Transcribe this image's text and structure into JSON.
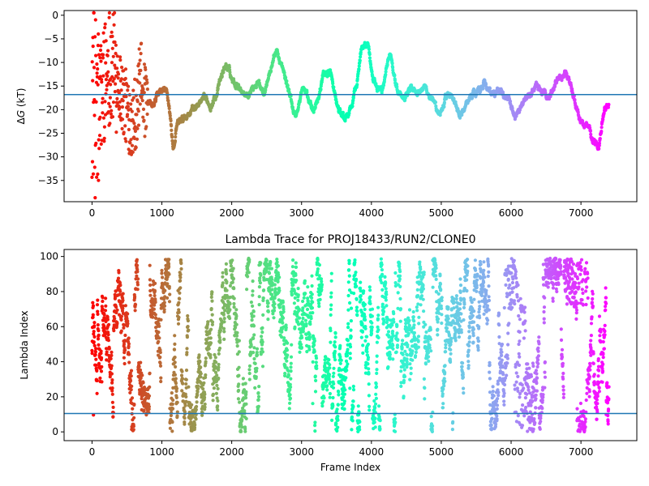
{
  "chart_data": [
    {
      "type": "scatter",
      "title": "",
      "xlabel": "",
      "ylabel": "ΔG (kT)",
      "ylabel_parts": [
        "Δ",
        "G",
        " (kT)"
      ],
      "xlim": [
        -400,
        7800
      ],
      "ylim": [
        -39.5,
        1
      ],
      "xticks": [
        0,
        1000,
        2000,
        3000,
        4000,
        5000,
        6000,
        7000
      ],
      "xtick_labels": [
        "0",
        "1000",
        "2000",
        "3000",
        "4000",
        "5000",
        "6000",
        "7000"
      ],
      "yticks": [
        -35,
        -30,
        -25,
        -20,
        -15,
        -10,
        -5,
        0
      ],
      "ytick_labels": [
        "−35",
        "−30",
        "−25",
        "−20",
        "−15",
        "−10",
        "−5",
        "0"
      ],
      "hline": -16.8,
      "hline_color": "#1f77b4",
      "colormap": "rainbow (red at frame 0 → violet at last frame)",
      "grid": false,
      "legend": "none",
      "x_range": [
        0,
        7400
      ],
      "control_points": [
        [
          0,
          -15
        ],
        [
          80,
          -22
        ],
        [
          150,
          -15
        ],
        [
          250,
          -10
        ],
        [
          350,
          -12
        ],
        [
          450,
          -18
        ],
        [
          550,
          -22
        ],
        [
          650,
          -20
        ],
        [
          700,
          -10
        ],
        [
          750,
          -18
        ],
        [
          850,
          -20
        ],
        [
          950,
          -16
        ],
        [
          1050,
          -16
        ],
        [
          1100,
          -20
        ],
        [
          1150,
          -30
        ],
        [
          1200,
          -23
        ],
        [
          1300,
          -22
        ],
        [
          1400,
          -20
        ],
        [
          1500,
          -19
        ],
        [
          1600,
          -18
        ],
        [
          1700,
          -19
        ],
        [
          1800,
          -15
        ],
        [
          1900,
          -10
        ],
        [
          2000,
          -14
        ],
        [
          2100,
          -15
        ],
        [
          2200,
          -17
        ],
        [
          2350,
          -14
        ],
        [
          2450,
          -16
        ],
        [
          2550,
          -11
        ],
        [
          2620,
          -7
        ],
        [
          2700,
          -11
        ],
        [
          2800,
          -16
        ],
        [
          2900,
          -22
        ],
        [
          3000,
          -15
        ],
        [
          3150,
          -20
        ],
        [
          3250,
          -16
        ],
        [
          3300,
          -12
        ],
        [
          3400,
          -12
        ],
        [
          3500,
          -20
        ],
        [
          3600,
          -22
        ],
        [
          3700,
          -20
        ],
        [
          3800,
          -12
        ],
        [
          3850,
          -6
        ],
        [
          3950,
          -6
        ],
        [
          4000,
          -15
        ],
        [
          4150,
          -16
        ],
        [
          4250,
          -7
        ],
        [
          4350,
          -16
        ],
        [
          4450,
          -17
        ],
        [
          4550,
          -15
        ],
        [
          4650,
          -16
        ],
        [
          4750,
          -15
        ],
        [
          4850,
          -18
        ],
        [
          4950,
          -22
        ],
        [
          5050,
          -17
        ],
        [
          5150,
          -17
        ],
        [
          5250,
          -22
        ],
        [
          5400,
          -17
        ],
        [
          5500,
          -16
        ],
        [
          5600,
          -14
        ],
        [
          5700,
          -17
        ],
        [
          5850,
          -16
        ],
        [
          5950,
          -18
        ],
        [
          6050,
          -22
        ],
        [
          6150,
          -18
        ],
        [
          6250,
          -17
        ],
        [
          6350,
          -15
        ],
        [
          6450,
          -17
        ],
        [
          6550,
          -17
        ],
        [
          6650,
          -13
        ],
        [
          6800,
          -12
        ],
        [
          6900,
          -19
        ],
        [
          7000,
          -23
        ],
        [
          7100,
          -23
        ],
        [
          7150,
          -27
        ],
        [
          7250,
          -27
        ],
        [
          7300,
          -20
        ],
        [
          7400,
          -19
        ]
      ],
      "scatter_band_end_frame": 800
    },
    {
      "type": "scatter",
      "title": "Lambda Trace for PROJ18433/RUN2/CLONE0",
      "xlabel": "Frame Index",
      "ylabel": "Lambda Index",
      "xlim": [
        -400,
        7800
      ],
      "ylim": [
        -5,
        104
      ],
      "xticks": [
        0,
        1000,
        2000,
        3000,
        4000,
        5000,
        6000,
        7000
      ],
      "xtick_labels": [
        "0",
        "1000",
        "2000",
        "3000",
        "4000",
        "5000",
        "6000",
        "7000"
      ],
      "yticks": [
        0,
        20,
        40,
        60,
        80,
        100
      ],
      "ytick_labels": [
        "0",
        "20",
        "40",
        "60",
        "80",
        "100"
      ],
      "hline": 10.5,
      "hline_color": "#1f77b4",
      "colormap": "rainbow (red at frame 0 → violet at last frame)",
      "grid": false,
      "legend": "none",
      "x_range": [
        0,
        7400
      ],
      "y_range": [
        0,
        99
      ],
      "dense_regions": [
        {
          "x": [
            6800,
            7100
          ],
          "y": [
            72,
            99
          ],
          "label": ""
        },
        {
          "x": [
            6050,
            6350
          ],
          "y": [
            0,
            40
          ],
          "label": ""
        },
        {
          "x": [
            5900,
            6050
          ],
          "y": [
            70,
            99
          ],
          "label": ""
        }
      ]
    }
  ]
}
